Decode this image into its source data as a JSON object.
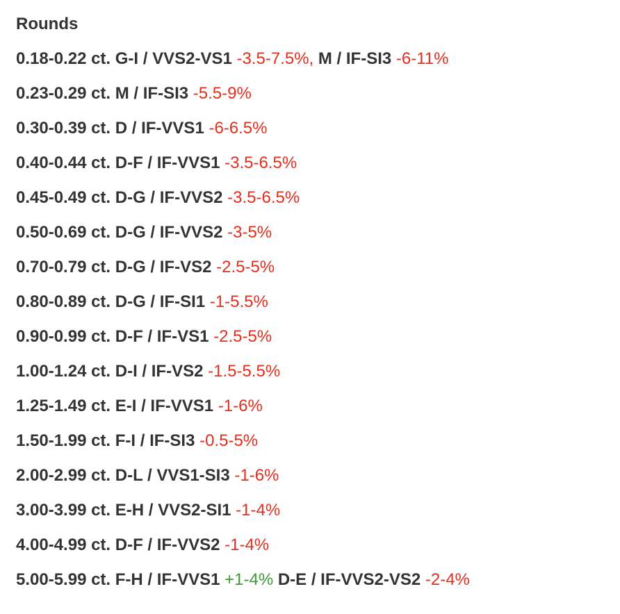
{
  "heading": "Rounds",
  "colors": {
    "text": "#333333",
    "negative": "#e2301f",
    "positive": "#3d9b3a"
  },
  "rows": [
    {
      "parts": [
        {
          "text": "0.18-0.22 ct. G-I / VVS2-VS1 ",
          "kind": "seg"
        },
        {
          "text": "-3.5-7.5%,",
          "kind": "neg"
        },
        {
          "text": " M / IF-SI3 ",
          "kind": "seg"
        },
        {
          "text": "-6-11%",
          "kind": "neg"
        }
      ]
    },
    {
      "parts": [
        {
          "text": "0.23-0.29 ct. M / IF-SI3 ",
          "kind": "seg"
        },
        {
          "text": "-5.5-9%",
          "kind": "neg"
        }
      ]
    },
    {
      "parts": [
        {
          "text": "0.30-0.39 ct. D / IF-VVS1 ",
          "kind": "seg"
        },
        {
          "text": "-6-6.5%",
          "kind": "neg"
        }
      ]
    },
    {
      "parts": [
        {
          "text": "0.40-0.44 ct. D-F / IF-VVS1 ",
          "kind": "seg"
        },
        {
          "text": "-3.5-6.5%",
          "kind": "neg"
        }
      ]
    },
    {
      "parts": [
        {
          "text": "0.45-0.49 ct. D-G / IF-VVS2 ",
          "kind": "seg"
        },
        {
          "text": "-3.5-6.5%",
          "kind": "neg"
        }
      ]
    },
    {
      "parts": [
        {
          "text": "0.50-0.69 ct. D-G / IF-VVS2 ",
          "kind": "seg"
        },
        {
          "text": "-3-5%",
          "kind": "neg"
        }
      ]
    },
    {
      "parts": [
        {
          "text": "0.70-0.79 ct. D-G / IF-VS2 ",
          "kind": "seg"
        },
        {
          "text": "-2.5-5%",
          "kind": "neg"
        }
      ]
    },
    {
      "parts": [
        {
          "text": "0.80-0.89 ct. D-G / IF-SI1 ",
          "kind": "seg"
        },
        {
          "text": "-1-5.5%",
          "kind": "neg"
        }
      ]
    },
    {
      "parts": [
        {
          "text": "0.90-0.99 ct. D-F / IF-VS1 ",
          "kind": "seg"
        },
        {
          "text": "-2.5-5%",
          "kind": "neg"
        }
      ]
    },
    {
      "parts": [
        {
          "text": "1.00-1.24 ct. D-I / IF-VS2 ",
          "kind": "seg"
        },
        {
          "text": "-1.5-5.5%",
          "kind": "neg"
        }
      ]
    },
    {
      "parts": [
        {
          "text": "1.25-1.49 ct. E-I / IF-VVS1 ",
          "kind": "seg"
        },
        {
          "text": "-1-6%",
          "kind": "neg"
        }
      ]
    },
    {
      "parts": [
        {
          "text": "1.50-1.99 ct. F-I / IF-SI3 ",
          "kind": "seg"
        },
        {
          "text": "-0.5-5%",
          "kind": "neg"
        }
      ]
    },
    {
      "parts": [
        {
          "text": "2.00-2.99 ct. D-L / VVS1-SI3 ",
          "kind": "seg"
        },
        {
          "text": "-1-6%",
          "kind": "neg"
        }
      ]
    },
    {
      "parts": [
        {
          "text": "3.00-3.99 ct. E-H / VVS2-SI1 ",
          "kind": "seg"
        },
        {
          "text": "-1-4%",
          "kind": "neg"
        }
      ]
    },
    {
      "parts": [
        {
          "text": "4.00-4.99 ct. D-F / IF-VVS2 ",
          "kind": "seg"
        },
        {
          "text": "-1-4%",
          "kind": "neg"
        }
      ]
    },
    {
      "parts": [
        {
          "text": "5.00-5.99 ct. F-H / IF-VVS1 ",
          "kind": "seg"
        },
        {
          "text": "+1-4%",
          "kind": "pos"
        },
        {
          "text": " D-E / IF-VVS2-VS2 ",
          "kind": "seg"
        },
        {
          "text": "-2-4%",
          "kind": "neg"
        }
      ]
    }
  ]
}
